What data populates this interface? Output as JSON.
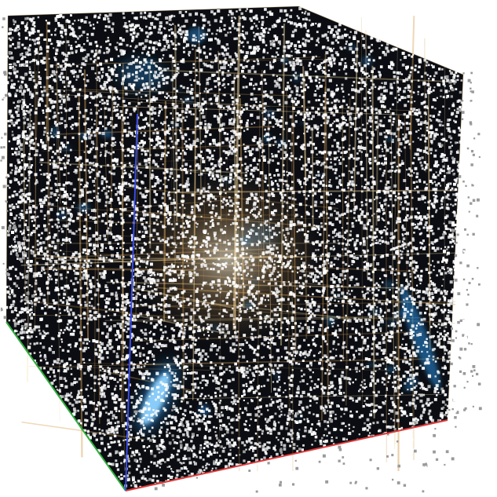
{
  "scene": {
    "subject": "point-cloud-cube",
    "background_color": "#ffffff",
    "volume_fill_color": "#0b0d12",
    "point_color": "#ffffff",
    "structure_glow_color": "#d9a45a",
    "structure_glow_light_color": "#f3d9a0",
    "cluster_glow_color": "#2a8ee0",
    "cluster_glow_light_color": "#8fd3ff",
    "axes": {
      "x_axis_color": "#e03a3a",
      "y_axis_color": "#2fae3c",
      "z_axis_color": "#3a4ee6"
    },
    "point_density": 9000,
    "random_seed": 7
  }
}
